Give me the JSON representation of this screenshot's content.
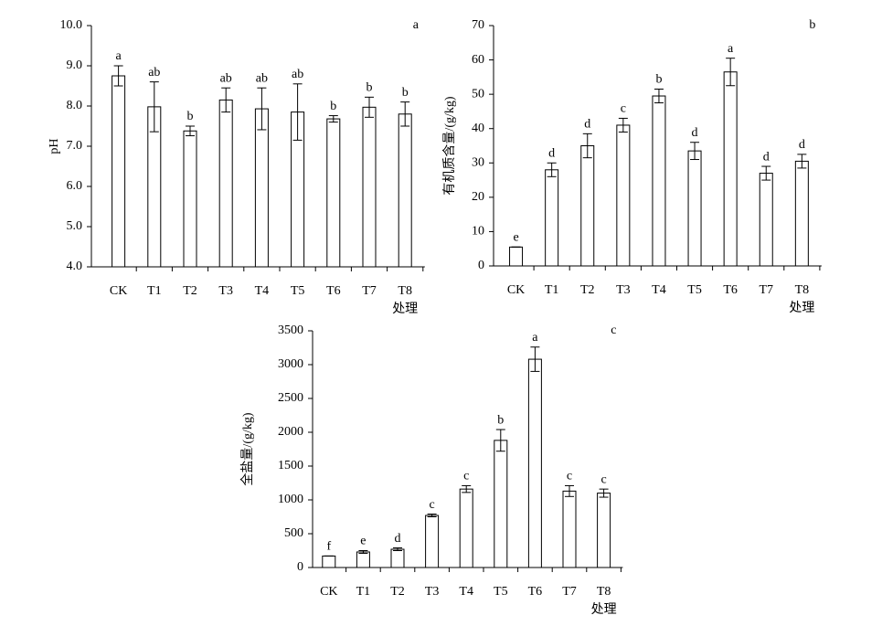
{
  "chart_data": [
    {
      "type": "bar",
      "panel_label": "a",
      "y_label": "pH",
      "x_label": "处理",
      "categories": [
        "CK",
        "T1",
        "T2",
        "T3",
        "T4",
        "T5",
        "T6",
        "T7",
        "T8"
      ],
      "values": [
        8.75,
        7.98,
        7.38,
        8.15,
        7.93,
        7.85,
        7.68,
        7.97,
        7.8
      ],
      "errors": [
        0.25,
        0.62,
        0.12,
        0.3,
        0.52,
        0.7,
        0.08,
        0.25,
        0.3
      ],
      "letters": [
        "a",
        "ab",
        "b",
        "ab",
        "ab",
        "ab",
        "b",
        "b",
        "b"
      ],
      "color": "#ffffff",
      "ylim": [
        4,
        10
      ],
      "yticks": [
        {
          "value": 4,
          "label": "4.0"
        },
        {
          "value": 5,
          "label": "5.0"
        },
        {
          "value": 6,
          "label": "6.0"
        },
        {
          "value": 7,
          "label": "7.0"
        },
        {
          "value": 8,
          "label": "8.0"
        },
        {
          "value": 9,
          "label": "9.0"
        },
        {
          "value": 10,
          "label": "10.0"
        }
      ]
    },
    {
      "type": "bar",
      "panel_label": "b",
      "y_label": "有机质含量/(g/kg)",
      "x_label": "处理",
      "categories": [
        "CK",
        "T1",
        "T2",
        "T3",
        "T4",
        "T5",
        "T6",
        "T7",
        "T8"
      ],
      "values": [
        5.5,
        28,
        35,
        41,
        49.5,
        33.5,
        56.5,
        27,
        30.5
      ],
      "errors": [
        0,
        2,
        3.5,
        2,
        2,
        2.5,
        4,
        2,
        2
      ],
      "letters": [
        "e",
        "d",
        "d",
        "c",
        "b",
        "d",
        "a",
        "d",
        "d"
      ],
      "color": "#ffffff",
      "ylim": [
        0,
        70
      ],
      "yticks": [
        0,
        10,
        20,
        30,
        40,
        50,
        60,
        70
      ]
    },
    {
      "type": "bar",
      "panel_label": "c",
      "y_label": "全盐量/(g/kg)",
      "x_label": "处理",
      "categories": [
        "CK",
        "T1",
        "T2",
        "T3",
        "T4",
        "T5",
        "T6",
        "T7",
        "T8"
      ],
      "values": [
        170,
        230,
        270,
        770,
        1160,
        1880,
        3080,
        1130,
        1100
      ],
      "errors": [
        0,
        20,
        20,
        20,
        50,
        160,
        180,
        80,
        60
      ],
      "letters": [
        "f",
        "e",
        "d",
        "c",
        "c",
        "b",
        "a",
        "c",
        "c"
      ],
      "color": "#ffffff",
      "ylim": [
        0,
        3500
      ],
      "yticks": [
        0,
        500,
        1000,
        1500,
        2000,
        2500,
        3000,
        3500
      ]
    }
  ]
}
